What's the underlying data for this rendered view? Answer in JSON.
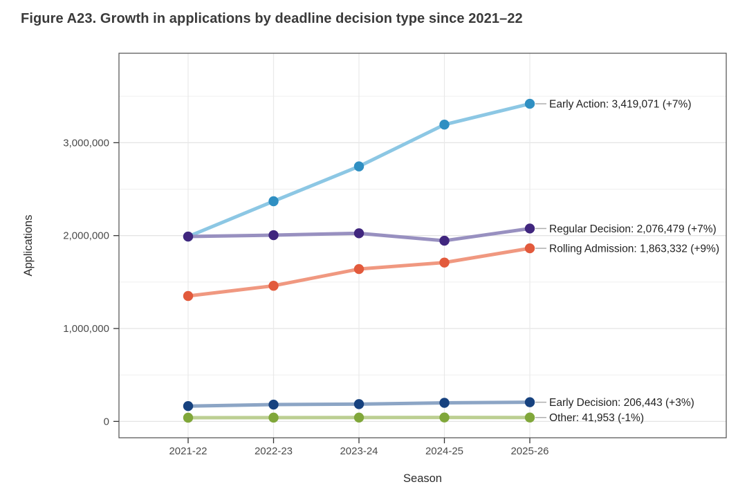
{
  "figure_title": "Figure A23. Growth in applications by deadline decision type since 2021–22",
  "chart_data": {
    "type": "line",
    "title": "Figure A23. Growth in applications by deadline decision type since 2021–22",
    "xlabel": "Season",
    "ylabel": "Applications",
    "categories": [
      "2021-22",
      "2022-23",
      "2023-24",
      "2024-25",
      "2025-26"
    ],
    "series": [
      {
        "name": "Early Action",
        "values": [
          1990000,
          2370000,
          2745000,
          3195000,
          3419071
        ],
        "final_value": "3,419,071",
        "pct_change": "+7%",
        "annotation": "Early Action: 3,419,071 (+7%)",
        "line_color": "#8cc7e4",
        "point_color": "#2f8fc2"
      },
      {
        "name": "Regular Decision",
        "values": [
          1990000,
          2005000,
          2025000,
          1945000,
          2076479
        ],
        "final_value": "2,076,479",
        "pct_change": "+7%",
        "annotation": "Regular Decision: 2,076,479 (+7%)",
        "line_color": "#9890c0",
        "point_color": "#40267e"
      },
      {
        "name": "Rolling Admission",
        "values": [
          1350000,
          1460000,
          1640000,
          1710000,
          1863332
        ],
        "final_value": "1,863,332",
        "pct_change": "+9%",
        "annotation": "Rolling Admission: 1,863,332 (+9%)",
        "line_color": "#f09880",
        "point_color": "#e25a3c"
      },
      {
        "name": "Early Decision",
        "values": [
          165000,
          181000,
          186000,
          200000,
          206443
        ],
        "final_value": "206,443",
        "pct_change": "+3%",
        "annotation": "Early Decision: 206,443 (+3%)",
        "line_color": "#8ca5c5",
        "point_color": "#17427f"
      },
      {
        "name": "Other",
        "values": [
          40000,
          41000,
          41500,
          42400,
          41953
        ],
        "final_value": "41,953",
        "pct_change": "-1%",
        "annotation": "Other: 41,953 (-1%)",
        "line_color": "#bccf92",
        "point_color": "#80a73a"
      }
    ],
    "ylim": [
      -176000,
      3963000
    ],
    "yticks": [
      0,
      1000000,
      2000000,
      3000000
    ],
    "ytick_labels": [
      "0",
      "1,000,000",
      "2,000,000",
      "3,000,000"
    ],
    "minor_yticks": [
      500000,
      1500000,
      2500000,
      3500000
    ],
    "grid": true,
    "legend_position": "right-annotations",
    "colors": {
      "panel_border": "#4d4d4d",
      "major_grid": "#e4e4e4",
      "minor_grid": "#f0f0f0",
      "vertical_grid": "#e9e9e9",
      "tick_label": "#4a4a4a",
      "axis_title": "#2b2b2b",
      "annotation_text": "#1f1f1f",
      "leader_line": "#adadad",
      "title_text": "#3a3a3a",
      "background": "#ffffff"
    }
  }
}
